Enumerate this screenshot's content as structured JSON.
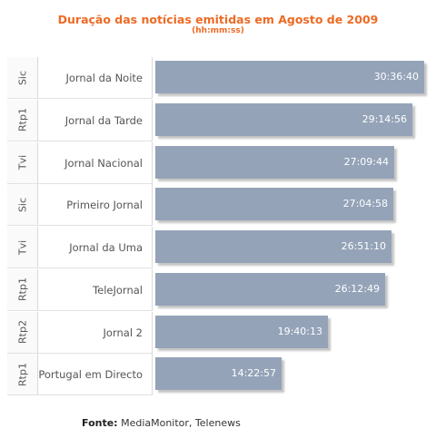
{
  "header": {
    "title": "Duração das notícias emitidas em Agosto de 2009",
    "subtitle": "(hh:mm:ss)"
  },
  "footer": {
    "source_label": "Fonte:",
    "source_text": "MediaMonitor, Telenews"
  },
  "colors": {
    "title": "#ee6a24",
    "bar": "#94a3b8",
    "bar_label": "#ffffff"
  },
  "chart_data": {
    "type": "bar",
    "orientation": "horizontal",
    "title": "Duração das notícias emitidas em Agosto de 2009",
    "subtitle": "(hh:mm:ss)",
    "unit": "hh:mm:ss",
    "rows": [
      {
        "channel": "Sic",
        "program": "Jornal da Noite",
        "label": "30:36:40",
        "seconds": 110200
      },
      {
        "channel": "Rtp1",
        "program": "Jornal da Tarde",
        "label": "29:14:56",
        "seconds": 105296
      },
      {
        "channel": "Tvi",
        "program": "Jornal Nacional",
        "label": "27:09:44",
        "seconds": 97784
      },
      {
        "channel": "Sic",
        "program": "Primeiro Jornal",
        "label": "27:04:58",
        "seconds": 97498
      },
      {
        "channel": "Tvi",
        "program": "Jornal da Uma",
        "label": "26:51:10",
        "seconds": 96670
      },
      {
        "channel": "Rtp1",
        "program": "TeleJornal",
        "label": "26:12:49",
        "seconds": 94369
      },
      {
        "channel": "Rtp2",
        "program": "Jornal 2",
        "label": "19:40:13",
        "seconds": 70813
      },
      {
        "channel": "Rtp1",
        "program": "Portugal em Directo",
        "label": "14:22:57",
        "seconds": 51777
      }
    ]
  }
}
